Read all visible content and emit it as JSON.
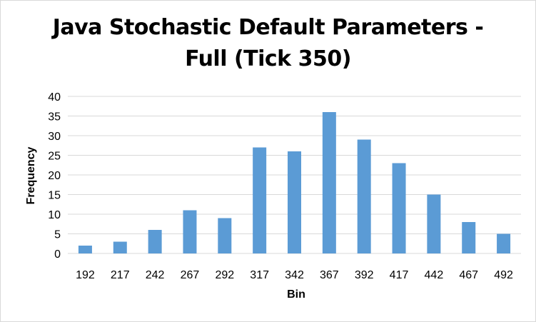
{
  "chart_data": {
    "type": "bar",
    "title_lines": [
      "Java Stochastic Default Parameters -",
      "Full (Tick 350)"
    ],
    "xlabel": "Bin",
    "ylabel": "Frequency",
    "categories": [
      "192",
      "217",
      "242",
      "267",
      "292",
      "317",
      "342",
      "367",
      "392",
      "417",
      "442",
      "467",
      "492"
    ],
    "values": [
      2,
      3,
      6,
      11,
      9,
      27,
      26,
      36,
      29,
      23,
      15,
      8,
      5
    ],
    "ylim": [
      0,
      40
    ],
    "yticks": [
      0,
      5,
      10,
      15,
      20,
      25,
      30,
      35,
      40
    ],
    "grid": true,
    "legend": "none",
    "bar_color": "#5b9bd5",
    "grid_color": "#d9d9d9"
  }
}
